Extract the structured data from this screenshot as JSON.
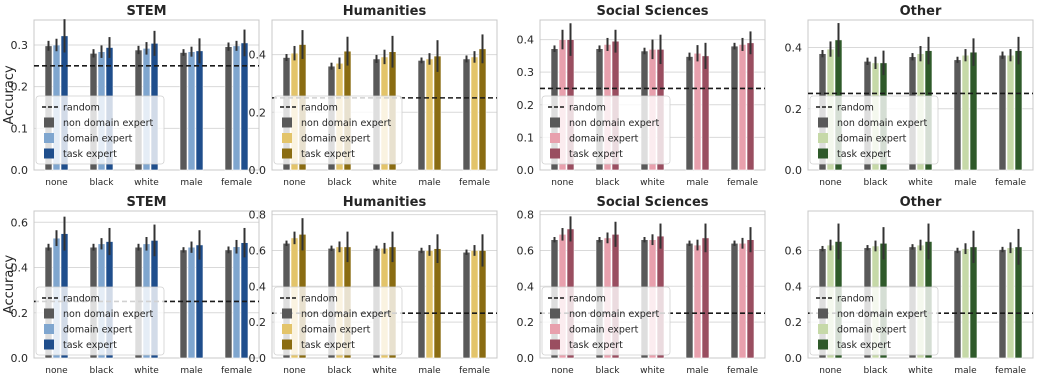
{
  "figure": {
    "ylabel": "Accuracy"
  },
  "colors": {
    "non_domain_expert": "#595959",
    "STEM": {
      "domain_expert": "#7fa6cf",
      "task_expert": "#1f4e8c"
    },
    "Humanities": {
      "domain_expert": "#e3c46a",
      "task_expert": "#8a6c12"
    },
    "Social Sciences": {
      "domain_expert": "#e8a0ad",
      "task_expert": "#9a4e60"
    },
    "Other": {
      "domain_expert": "#c6d9a8",
      "task_expert": "#2f5a2a"
    },
    "error_bar": "#333333",
    "random_line": "#1a1a1a",
    "grid": "#d9d9d9",
    "frame": "#c8c8c8"
  },
  "legend": {
    "random": "random",
    "non_domain_expert": "non domain expert",
    "domain_expert": "domain expert",
    "task_expert": "task expert"
  },
  "chart_data": [
    {
      "type": "bar",
      "row": 0,
      "col": 0,
      "title": "STEM",
      "categories": [
        "none",
        "black",
        "white",
        "male",
        "female"
      ],
      "ylim": [
        0,
        0.36
      ],
      "yticks": [
        0,
        0.1,
        0.2,
        0.3
      ],
      "ytick_labels": [
        "0.0",
        "0.1",
        "0.2",
        "0.3"
      ],
      "random": 0.25,
      "series": [
        {
          "name": "non domain expert",
          "values": [
            0.298,
            0.28,
            0.288,
            0.282,
            0.296
          ],
          "err": [
            0.012,
            0.01,
            0.01,
            0.008,
            0.01
          ]
        },
        {
          "name": "domain expert",
          "values": [
            0.3,
            0.284,
            0.292,
            0.284,
            0.298
          ],
          "err": [
            0.015,
            0.015,
            0.015,
            0.012,
            0.012
          ]
        },
        {
          "name": "task expert",
          "values": [
            0.322,
            0.294,
            0.304,
            0.286,
            0.305
          ],
          "err": [
            0.04,
            0.025,
            0.03,
            0.03,
            0.032
          ]
        }
      ]
    },
    {
      "type": "bar",
      "row": 0,
      "col": 1,
      "title": "Humanities",
      "categories": [
        "none",
        "black",
        "white",
        "male",
        "female"
      ],
      "ylim": [
        0,
        0.52
      ],
      "yticks": [
        0,
        0.2,
        0.4
      ],
      "ytick_labels": [
        "0.0",
        "0.2",
        "0.4"
      ],
      "random": 0.25,
      "series": [
        {
          "name": "non domain expert",
          "values": [
            0.39,
            0.36,
            0.385,
            0.38,
            0.385
          ],
          "err": [
            0.012,
            0.012,
            0.014,
            0.01,
            0.012
          ]
        },
        {
          "name": "domain expert",
          "values": [
            0.405,
            0.37,
            0.392,
            0.385,
            0.392
          ],
          "err": [
            0.025,
            0.02,
            0.025,
            0.02,
            0.02
          ]
        },
        {
          "name": "task expert",
          "values": [
            0.435,
            0.412,
            0.41,
            0.395,
            0.42
          ],
          "err": [
            0.05,
            0.05,
            0.055,
            0.055,
            0.05
          ]
        }
      ]
    },
    {
      "type": "bar",
      "row": 0,
      "col": 2,
      "title": "Social Sciences",
      "categories": [
        "none",
        "black",
        "white",
        "male",
        "female"
      ],
      "ylim": [
        0,
        0.46
      ],
      "yticks": [
        0,
        0.1,
        0.2,
        0.3,
        0.4
      ],
      "ytick_labels": [
        "0.0",
        "0.1",
        "0.2",
        "0.3",
        "0.4"
      ],
      "random": 0.25,
      "series": [
        {
          "name": "non domain expert",
          "values": [
            0.372,
            0.372,
            0.365,
            0.348,
            0.38
          ],
          "err": [
            0.01,
            0.01,
            0.01,
            0.012,
            0.01
          ]
        },
        {
          "name": "domain expert",
          "values": [
            0.4,
            0.385,
            0.37,
            0.358,
            0.385
          ],
          "err": [
            0.03,
            0.02,
            0.03,
            0.025,
            0.02
          ]
        },
        {
          "name": "task expert",
          "values": [
            0.4,
            0.395,
            0.37,
            0.35,
            0.39
          ],
          "err": [
            0.05,
            0.035,
            0.045,
            0.04,
            0.035
          ]
        }
      ]
    },
    {
      "type": "bar",
      "row": 0,
      "col": 3,
      "title": "Other",
      "categories": [
        "none",
        "black",
        "white",
        "male",
        "female"
      ],
      "ylim": [
        0,
        0.49
      ],
      "yticks": [
        0,
        0.2,
        0.4
      ],
      "ytick_labels": [
        "0.0",
        "0.2",
        "0.4"
      ],
      "random": 0.25,
      "series": [
        {
          "name": "non domain expert",
          "values": [
            0.38,
            0.355,
            0.37,
            0.36,
            0.375
          ],
          "err": [
            0.012,
            0.012,
            0.012,
            0.01,
            0.012
          ]
        },
        {
          "name": "domain expert",
          "values": [
            0.395,
            0.35,
            0.38,
            0.375,
            0.375
          ],
          "err": [
            0.025,
            0.02,
            0.025,
            0.02,
            0.02
          ]
        },
        {
          "name": "task expert",
          "values": [
            0.425,
            0.35,
            0.39,
            0.385,
            0.39
          ],
          "err": [
            0.055,
            0.04,
            0.045,
            0.045,
            0.045
          ]
        }
      ]
    },
    {
      "type": "bar",
      "row": 1,
      "col": 0,
      "title": "STEM",
      "categories": [
        "none",
        "black",
        "white",
        "male",
        "female"
      ],
      "ylim": [
        0,
        0.65
      ],
      "yticks": [
        0,
        0.2,
        0.4,
        0.6
      ],
      "ytick_labels": [
        "0.0",
        "0.2",
        "0.4",
        "0.6"
      ],
      "random": 0.25,
      "series": [
        {
          "name": "non domain expert",
          "values": [
            0.49,
            0.49,
            0.49,
            0.478,
            0.478
          ],
          "err": [
            0.015,
            0.015,
            0.015,
            0.012,
            0.015
          ]
        },
        {
          "name": "domain expert",
          "values": [
            0.53,
            0.505,
            0.505,
            0.49,
            0.492
          ],
          "err": [
            0.035,
            0.025,
            0.03,
            0.025,
            0.03
          ]
        },
        {
          "name": "task expert",
          "values": [
            0.55,
            0.515,
            0.52,
            0.5,
            0.51
          ],
          "err": [
            0.075,
            0.06,
            0.07,
            0.065,
            0.065
          ]
        }
      ]
    },
    {
      "type": "bar",
      "row": 1,
      "col": 1,
      "title": "Humanities",
      "categories": [
        "none",
        "black",
        "white",
        "male",
        "female"
      ],
      "ylim": [
        0,
        0.82
      ],
      "yticks": [
        0,
        0.2,
        0.4,
        0.6,
        0.8
      ],
      "ytick_labels": [
        "0.0",
        "0.2",
        "0.4",
        "0.6",
        "0.8"
      ],
      "random": 0.25,
      "series": [
        {
          "name": "non domain expert",
          "values": [
            0.64,
            0.612,
            0.612,
            0.6,
            0.59
          ],
          "err": [
            0.015,
            0.015,
            0.015,
            0.015,
            0.015
          ]
        },
        {
          "name": "domain expert",
          "values": [
            0.67,
            0.62,
            0.612,
            0.6,
            0.6
          ],
          "err": [
            0.035,
            0.03,
            0.03,
            0.03,
            0.03
          ]
        },
        {
          "name": "task expert",
          "values": [
            0.69,
            0.62,
            0.62,
            0.61,
            0.6
          ],
          "err": [
            0.09,
            0.085,
            0.085,
            0.08,
            0.09
          ]
        }
      ]
    },
    {
      "type": "bar",
      "row": 1,
      "col": 2,
      "title": "Social Sciences",
      "categories": [
        "none",
        "black",
        "white",
        "male",
        "female"
      ],
      "ylim": [
        0,
        0.82
      ],
      "yticks": [
        0,
        0.2,
        0.4,
        0.6,
        0.8
      ],
      "ytick_labels": [
        "0.0",
        "0.2",
        "0.4",
        "0.6",
        "0.8"
      ],
      "random": 0.25,
      "series": [
        {
          "name": "non domain expert",
          "values": [
            0.66,
            0.66,
            0.66,
            0.64,
            0.64
          ],
          "err": [
            0.015,
            0.015,
            0.015,
            0.015,
            0.015
          ]
        },
        {
          "name": "domain expert",
          "values": [
            0.69,
            0.67,
            0.66,
            0.63,
            0.64
          ],
          "err": [
            0.035,
            0.03,
            0.03,
            0.03,
            0.03
          ]
        },
        {
          "name": "task expert",
          "values": [
            0.72,
            0.69,
            0.68,
            0.67,
            0.66
          ],
          "err": [
            0.07,
            0.07,
            0.07,
            0.08,
            0.07
          ]
        }
      ]
    },
    {
      "type": "bar",
      "row": 1,
      "col": 3,
      "title": "Other",
      "categories": [
        "none",
        "black",
        "white",
        "male",
        "female"
      ],
      "ylim": [
        0,
        0.82
      ],
      "yticks": [
        0,
        0.2,
        0.4,
        0.6
      ],
      "ytick_labels": [
        "0.0",
        "0.2",
        "0.4",
        "0.6"
      ],
      "random": 0.25,
      "series": [
        {
          "name": "non domain expert",
          "values": [
            0.61,
            0.615,
            0.62,
            0.6,
            0.605
          ],
          "err": [
            0.015,
            0.015,
            0.015,
            0.015,
            0.015
          ]
        },
        {
          "name": "domain expert",
          "values": [
            0.63,
            0.625,
            0.63,
            0.61,
            0.615
          ],
          "err": [
            0.03,
            0.03,
            0.03,
            0.03,
            0.03
          ]
        },
        {
          "name": "task expert",
          "values": [
            0.65,
            0.64,
            0.65,
            0.62,
            0.62
          ],
          "err": [
            0.1,
            0.09,
            0.1,
            0.09,
            0.1
          ]
        }
      ]
    }
  ]
}
